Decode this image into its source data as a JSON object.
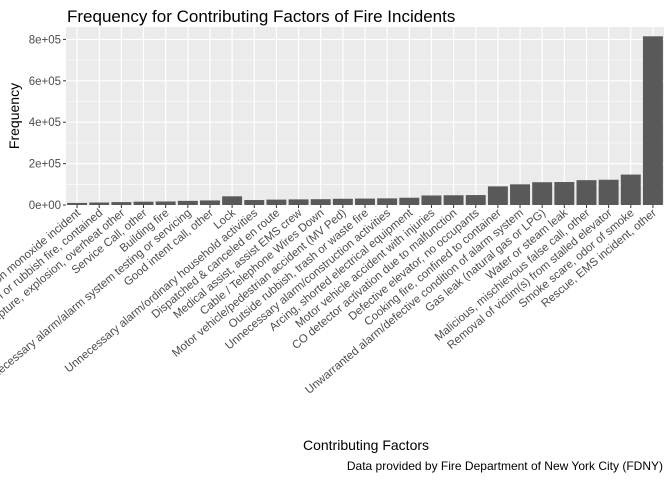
{
  "chart_data": {
    "type": "bar",
    "title": "Frequency for Contributing Factors of Fire Incidents",
    "xlabel": "Contributing Factors",
    "ylabel": "Frequency",
    "caption": "Data provided by Fire Department of New York City (FDNY)",
    "ylim": [
      0,
      860000
    ],
    "yticks": [
      "0e+00",
      "2e+05",
      "4e+05",
      "6e+05",
      "8e+05"
    ],
    "ytick_values": [
      0,
      200000,
      400000,
      600000,
      800000
    ],
    "grid": true,
    "bar_color": "#595959",
    "panel_background": "#ebebeb",
    "categories": [
      "Carbon monoxide incident",
      "Trash or rubbish fire, contained",
      "Steam rupture, explosion, overheat other",
      "Service Call, other",
      "Building fire",
      "Unnecessary alarm/alarm system testing or servicing",
      "Good intent call, other",
      "Lock",
      "Unnecessary alarm/ordinary household activities",
      "Dispatched & canceled en route",
      "Medical assist, assist EMS crew",
      "Cable / Telephone Wires Down",
      "Motor vehicle/pedestrian accident (MV Ped)",
      "Outside rubbish, trash or waste fire",
      "Unnecessary alarm/construction activities",
      "Arcing, shorted electrical equipment",
      "Motor vehicle accident with injuries",
      "CO detector activation due to malfunction",
      "Defective elevator, no occupants",
      "Cooking fire, confined to container",
      "Unwarranted alarm/defective condition of alarm system",
      "Gas leak (natural gas or LPG)",
      "Water or steam leak",
      "Malicious, mischievous false call, other",
      "Removal of victim(s) from stalled elevator",
      "Smoke scare, odor of smoke",
      "Rescue, EMS incident, other"
    ],
    "values": [
      10000,
      12000,
      14000,
      16000,
      17000,
      20000,
      22000,
      42000,
      24000,
      26000,
      27000,
      28000,
      30000,
      31000,
      32000,
      35000,
      46000,
      47000,
      48000,
      90000,
      100000,
      110000,
      111000,
      120000,
      122000,
      147000,
      815000
    ]
  }
}
